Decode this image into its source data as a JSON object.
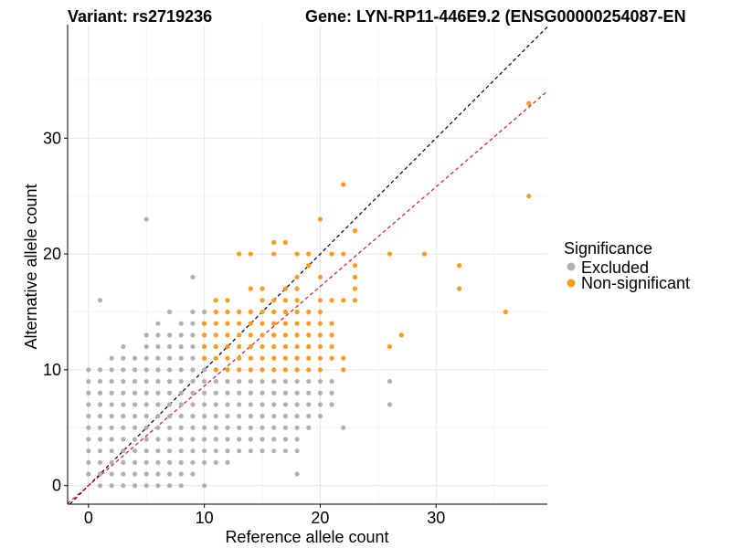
{
  "chart_data": {
    "type": "scatter",
    "title_left": "Variant: rs2719236",
    "title_right": "Gene: LYN-RP11-446E9.2 (ENSG00000254087-EN",
    "xlabel": "Reference allele count",
    "ylabel": "Alternative allele count",
    "xlim": [
      -1.8,
      39.6
    ],
    "ylim": [
      -1.6,
      39.8
    ],
    "x_ticks": [
      0,
      10,
      20,
      30
    ],
    "y_ticks": [
      0,
      10,
      20,
      30
    ],
    "grid": true,
    "legend": {
      "title": "Significance",
      "position": "right",
      "entries": [
        {
          "label": "Excluded",
          "color": "#b0b0b0"
        },
        {
          "label": "Non-significant",
          "color": "#ff9a1a"
        }
      ]
    },
    "reference_lines": [
      {
        "name": "identity",
        "slope": 1.0,
        "intercept": 0,
        "color": "#000000"
      },
      {
        "name": "fit",
        "slope": 0.86,
        "intercept": 0,
        "color": "#e8102a"
      }
    ],
    "series": [
      {
        "name": "Excluded",
        "color": "#b0b0b0",
        "points": [
          [
            0,
            1
          ],
          [
            0,
            2
          ],
          [
            0,
            3
          ],
          [
            0,
            4
          ],
          [
            0,
            5
          ],
          [
            0,
            6
          ],
          [
            0,
            7
          ],
          [
            0,
            8
          ],
          [
            0,
            9
          ],
          [
            0,
            10
          ],
          [
            1,
            0
          ],
          [
            1,
            1
          ],
          [
            1,
            2
          ],
          [
            1,
            3
          ],
          [
            1,
            4
          ],
          [
            1,
            5
          ],
          [
            1,
            6
          ],
          [
            1,
            7
          ],
          [
            1,
            8
          ],
          [
            1,
            9
          ],
          [
            1,
            10
          ],
          [
            1,
            16
          ],
          [
            2,
            0
          ],
          [
            2,
            1
          ],
          [
            2,
            2
          ],
          [
            2,
            3
          ],
          [
            2,
            4
          ],
          [
            2,
            5
          ],
          [
            2,
            6
          ],
          [
            2,
            7
          ],
          [
            2,
            8
          ],
          [
            2,
            9
          ],
          [
            2,
            10
          ],
          [
            2,
            11
          ],
          [
            3,
            0
          ],
          [
            3,
            1
          ],
          [
            3,
            2
          ],
          [
            3,
            3
          ],
          [
            3,
            4
          ],
          [
            3,
            5
          ],
          [
            3,
            6
          ],
          [
            3,
            7
          ],
          [
            3,
            8
          ],
          [
            3,
            9
          ],
          [
            3,
            10
          ],
          [
            3,
            11
          ],
          [
            3,
            12
          ],
          [
            4,
            0
          ],
          [
            4,
            1
          ],
          [
            4,
            2
          ],
          [
            4,
            3
          ],
          [
            4,
            4
          ],
          [
            4,
            5
          ],
          [
            4,
            6
          ],
          [
            4,
            7
          ],
          [
            4,
            8
          ],
          [
            4,
            9
          ],
          [
            4,
            10
          ],
          [
            4,
            11
          ],
          [
            5,
            0
          ],
          [
            5,
            1
          ],
          [
            5,
            2
          ],
          [
            5,
            3
          ],
          [
            5,
            4
          ],
          [
            5,
            5
          ],
          [
            5,
            6
          ],
          [
            5,
            7
          ],
          [
            5,
            8
          ],
          [
            5,
            9
          ],
          [
            5,
            10
          ],
          [
            5,
            11
          ],
          [
            5,
            12
          ],
          [
            5,
            13
          ],
          [
            5,
            23
          ],
          [
            6,
            0
          ],
          [
            6,
            1
          ],
          [
            6,
            2
          ],
          [
            6,
            3
          ],
          [
            6,
            4
          ],
          [
            6,
            5
          ],
          [
            6,
            6
          ],
          [
            6,
            7
          ],
          [
            6,
            8
          ],
          [
            6,
            9
          ],
          [
            6,
            10
          ],
          [
            6,
            11
          ],
          [
            6,
            12
          ],
          [
            6,
            13
          ],
          [
            6,
            14
          ],
          [
            7,
            0
          ],
          [
            7,
            1
          ],
          [
            7,
            2
          ],
          [
            7,
            3
          ],
          [
            7,
            4
          ],
          [
            7,
            5
          ],
          [
            7,
            6
          ],
          [
            7,
            7
          ],
          [
            7,
            8
          ],
          [
            7,
            9
          ],
          [
            7,
            10
          ],
          [
            7,
            11
          ],
          [
            7,
            12
          ],
          [
            7,
            13
          ],
          [
            7,
            15
          ],
          [
            8,
            0
          ],
          [
            8,
            1
          ],
          [
            8,
            2
          ],
          [
            8,
            3
          ],
          [
            8,
            4
          ],
          [
            8,
            5
          ],
          [
            8,
            6
          ],
          [
            8,
            7
          ],
          [
            8,
            8
          ],
          [
            8,
            9
          ],
          [
            8,
            10
          ],
          [
            8,
            11
          ],
          [
            8,
            12
          ],
          [
            8,
            13
          ],
          [
            8,
            14
          ],
          [
            9,
            1
          ],
          [
            9,
            2
          ],
          [
            9,
            3
          ],
          [
            9,
            4
          ],
          [
            9,
            5
          ],
          [
            9,
            6
          ],
          [
            9,
            7
          ],
          [
            9,
            8
          ],
          [
            9,
            9
          ],
          [
            9,
            10
          ],
          [
            9,
            11
          ],
          [
            9,
            12
          ],
          [
            9,
            13
          ],
          [
            9,
            14
          ],
          [
            9,
            15
          ],
          [
            9,
            18
          ],
          [
            10,
            0
          ],
          [
            10,
            2
          ],
          [
            10,
            3
          ],
          [
            10,
            4
          ],
          [
            10,
            5
          ],
          [
            10,
            6
          ],
          [
            10,
            7
          ],
          [
            10,
            8
          ],
          [
            10,
            9
          ],
          [
            10,
            10
          ],
          [
            10,
            11
          ],
          [
            10,
            12
          ],
          [
            10,
            13
          ],
          [
            10,
            14
          ],
          [
            10,
            15
          ],
          [
            11,
            2
          ],
          [
            11,
            3
          ],
          [
            11,
            4
          ],
          [
            11,
            5
          ],
          [
            11,
            6
          ],
          [
            11,
            7
          ],
          [
            11,
            8
          ],
          [
            11,
            9
          ],
          [
            12,
            2
          ],
          [
            12,
            3
          ],
          [
            12,
            4
          ],
          [
            12,
            5
          ],
          [
            12,
            6
          ],
          [
            12,
            7
          ],
          [
            12,
            8
          ],
          [
            12,
            9
          ],
          [
            13,
            3
          ],
          [
            13,
            4
          ],
          [
            13,
            5
          ],
          [
            13,
            6
          ],
          [
            13,
            7
          ],
          [
            13,
            8
          ],
          [
            13,
            9
          ],
          [
            14,
            3
          ],
          [
            14,
            4
          ],
          [
            14,
            5
          ],
          [
            14,
            6
          ],
          [
            14,
            7
          ],
          [
            14,
            8
          ],
          [
            14,
            9
          ],
          [
            15,
            3
          ],
          [
            15,
            4
          ],
          [
            15,
            5
          ],
          [
            15,
            6
          ],
          [
            15,
            7
          ],
          [
            15,
            8
          ],
          [
            15,
            9
          ],
          [
            16,
            3
          ],
          [
            16,
            4
          ],
          [
            16,
            5
          ],
          [
            16,
            6
          ],
          [
            16,
            7
          ],
          [
            16,
            8
          ],
          [
            16,
            9
          ],
          [
            17,
            3
          ],
          [
            17,
            4
          ],
          [
            17,
            5
          ],
          [
            17,
            6
          ],
          [
            17,
            7
          ],
          [
            17,
            8
          ],
          [
            17,
            9
          ],
          [
            18,
            1
          ],
          [
            18,
            3
          ],
          [
            18,
            4
          ],
          [
            18,
            5
          ],
          [
            18,
            6
          ],
          [
            18,
            7
          ],
          [
            18,
            8
          ],
          [
            18,
            9
          ],
          [
            19,
            5
          ],
          [
            19,
            6
          ],
          [
            19,
            7
          ],
          [
            19,
            8
          ],
          [
            19,
            9
          ],
          [
            20,
            6
          ],
          [
            20,
            7
          ],
          [
            20,
            8
          ],
          [
            20,
            9
          ],
          [
            21,
            7
          ],
          [
            21,
            8
          ],
          [
            21,
            9
          ],
          [
            22,
            5
          ],
          [
            26,
            7
          ],
          [
            26,
            9
          ]
        ]
      },
      {
        "name": "Non-significant",
        "color": "#ff9a1a",
        "points": [
          [
            10,
            11
          ],
          [
            10,
            12
          ],
          [
            10,
            13
          ],
          [
            10,
            14
          ],
          [
            11,
            10
          ],
          [
            11,
            11
          ],
          [
            11,
            12
          ],
          [
            11,
            13
          ],
          [
            11,
            14
          ],
          [
            11,
            15
          ],
          [
            11,
            16
          ],
          [
            12,
            10
          ],
          [
            12,
            11
          ],
          [
            12,
            12
          ],
          [
            12,
            13
          ],
          [
            12,
            14
          ],
          [
            12,
            15
          ],
          [
            12,
            16
          ],
          [
            13,
            10
          ],
          [
            13,
            11
          ],
          [
            13,
            12
          ],
          [
            13,
            13
          ],
          [
            13,
            14
          ],
          [
            13,
            15
          ],
          [
            13,
            20
          ],
          [
            14,
            10
          ],
          [
            14,
            11
          ],
          [
            14,
            12
          ],
          [
            14,
            13
          ],
          [
            14,
            14
          ],
          [
            14,
            15
          ],
          [
            14,
            17
          ],
          [
            14,
            20
          ],
          [
            15,
            10
          ],
          [
            15,
            11
          ],
          [
            15,
            12
          ],
          [
            15,
            13
          ],
          [
            15,
            14
          ],
          [
            15,
            15
          ],
          [
            15,
            16
          ],
          [
            15,
            17
          ],
          [
            16,
            10
          ],
          [
            16,
            11
          ],
          [
            16,
            12
          ],
          [
            16,
            13
          ],
          [
            16,
            14
          ],
          [
            16,
            15
          ],
          [
            16,
            16
          ],
          [
            16,
            20
          ],
          [
            16,
            21
          ],
          [
            17,
            10
          ],
          [
            17,
            11
          ],
          [
            17,
            12
          ],
          [
            17,
            13
          ],
          [
            17,
            14
          ],
          [
            17,
            15
          ],
          [
            17,
            16
          ],
          [
            17,
            17
          ],
          [
            17,
            21
          ],
          [
            18,
            10
          ],
          [
            18,
            11
          ],
          [
            18,
            12
          ],
          [
            18,
            13
          ],
          [
            18,
            14
          ],
          [
            18,
            15
          ],
          [
            18,
            16
          ],
          [
            18,
            17
          ],
          [
            18,
            18
          ],
          [
            18,
            20
          ],
          [
            19,
            10
          ],
          [
            19,
            11
          ],
          [
            19,
            12
          ],
          [
            19,
            13
          ],
          [
            19,
            14
          ],
          [
            19,
            15
          ],
          [
            19,
            19
          ],
          [
            19,
            20
          ],
          [
            20,
            10
          ],
          [
            20,
            11
          ],
          [
            20,
            12
          ],
          [
            20,
            13
          ],
          [
            20,
            14
          ],
          [
            20,
            15
          ],
          [
            20,
            16
          ],
          [
            20,
            18
          ],
          [
            20,
            23
          ],
          [
            21,
            11
          ],
          [
            21,
            12
          ],
          [
            21,
            13
          ],
          [
            21,
            14
          ],
          [
            21,
            16
          ],
          [
            21,
            20
          ],
          [
            22,
            10
          ],
          [
            22,
            11
          ],
          [
            22,
            16
          ],
          [
            22,
            20
          ],
          [
            22,
            26
          ],
          [
            23,
            16
          ],
          [
            23,
            17
          ],
          [
            23,
            18
          ],
          [
            23,
            19
          ],
          [
            23,
            22
          ],
          [
            26,
            12
          ],
          [
            26,
            20
          ],
          [
            27,
            13
          ],
          [
            29,
            20
          ],
          [
            32,
            17
          ],
          [
            32,
            19
          ],
          [
            36,
            15
          ],
          [
            38,
            25
          ],
          [
            38,
            33
          ]
        ]
      }
    ]
  }
}
